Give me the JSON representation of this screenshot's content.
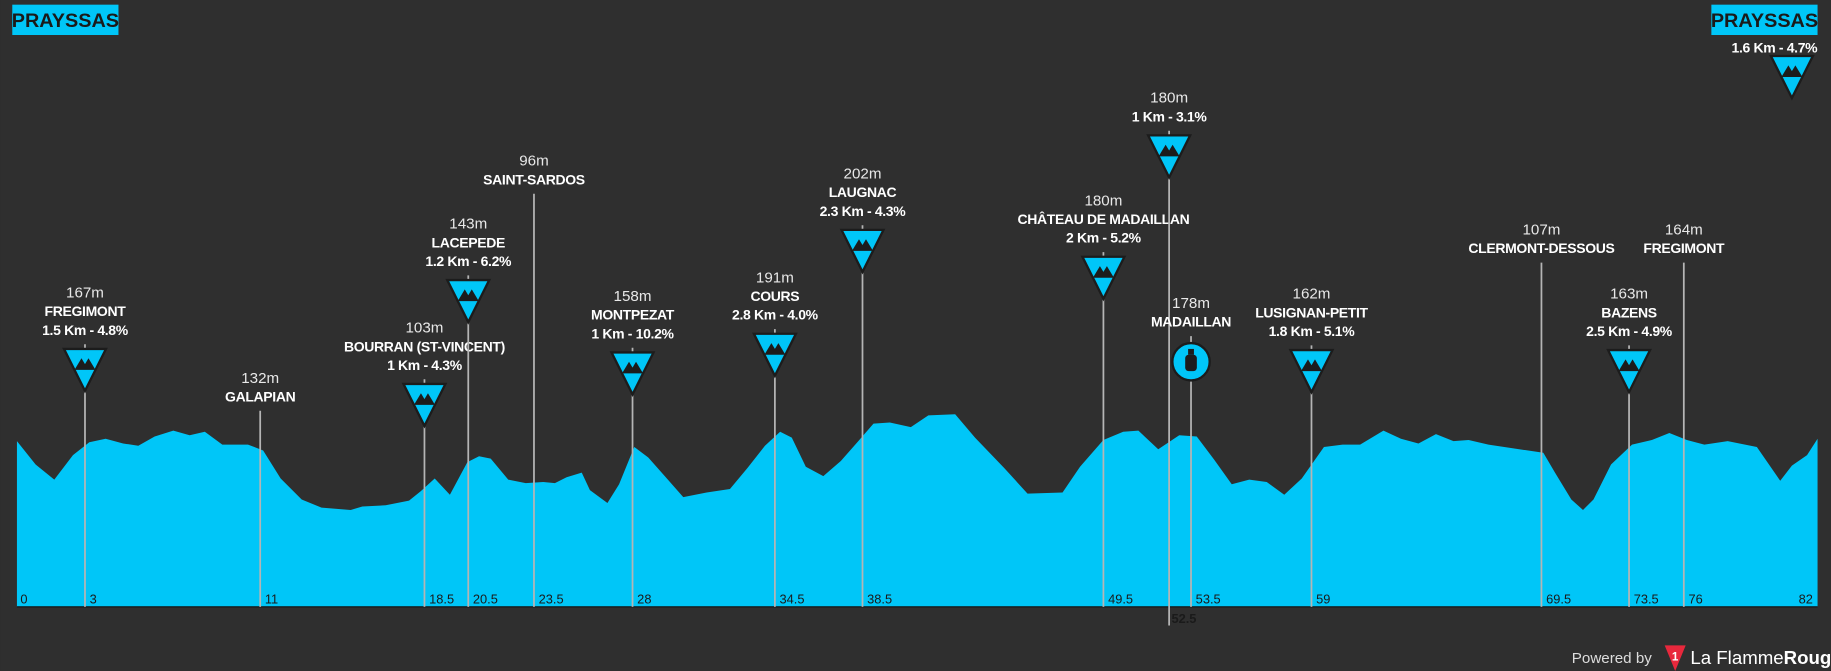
{
  "start": "PRAYSSAS",
  "finish": "PRAYSSAS",
  "finish_climb": "1.6 Km - 4.7%",
  "km_start": 0,
  "km_end": 82,
  "waypoints": [
    {
      "km": 3,
      "altitude": "167m",
      "name": "FREGIMONT",
      "climb": "1.5 Km - 4.8%",
      "icon": "kom"
    },
    {
      "km": 11,
      "altitude": "132m",
      "name": "GALAPIAN"
    },
    {
      "km": 18.5,
      "altitude": "103m",
      "name": "BOURRAN (ST-VINCENT)",
      "climb": "1 Km - 4.3%",
      "icon": "kom"
    },
    {
      "km": 20.5,
      "altitude": "143m",
      "name": "LACEPEDE",
      "climb": "1.2 Km - 6.2%",
      "icon": "kom"
    },
    {
      "km": 23.5,
      "altitude": "96m",
      "name": "SAINT-SARDOS"
    },
    {
      "km": 28,
      "altitude": "158m",
      "name": "MONTPEZAT",
      "climb": "1 Km - 10.2%",
      "icon": "kom"
    },
    {
      "km": 34.5,
      "altitude": "191m",
      "name": "COURS",
      "climb": "2.8 Km - 4.0%",
      "icon": "kom"
    },
    {
      "km": 38.5,
      "altitude": "202m",
      "name": "LAUGNAC",
      "climb": "2.3 Km - 4.3%",
      "icon": "kom"
    },
    {
      "km": 49.5,
      "altitude": "180m",
      "name": "CHÂTEAU DE MADAILLAN",
      "climb": "2 Km - 5.2%",
      "icon": "kom"
    },
    {
      "km": 52.5,
      "altitude": "180m",
      "climb": "1 Km - 3.1%",
      "icon": "kom"
    },
    {
      "km": 53.5,
      "altitude": "178m",
      "name": "MADAILLAN",
      "icon": "feed"
    },
    {
      "km": 59,
      "altitude": "162m",
      "name": "LUSIGNAN-PETIT",
      "climb": "1.8 Km - 5.1%",
      "icon": "kom"
    },
    {
      "km": 69.5,
      "altitude": "107m",
      "name": "CLERMONT-DESSOUS"
    },
    {
      "km": 73.5,
      "altitude": "163m",
      "name": "BAZENS",
      "climb": "2.5 Km - 4.9%",
      "icon": "kom"
    },
    {
      "km": 76,
      "altitude": "164m",
      "name": "FREGIMONT"
    }
  ],
  "footer": {
    "powered": "Powered by",
    "logo_mark": "1",
    "brand_a": "La Flamme",
    "brand_b": "Rouge"
  }
}
